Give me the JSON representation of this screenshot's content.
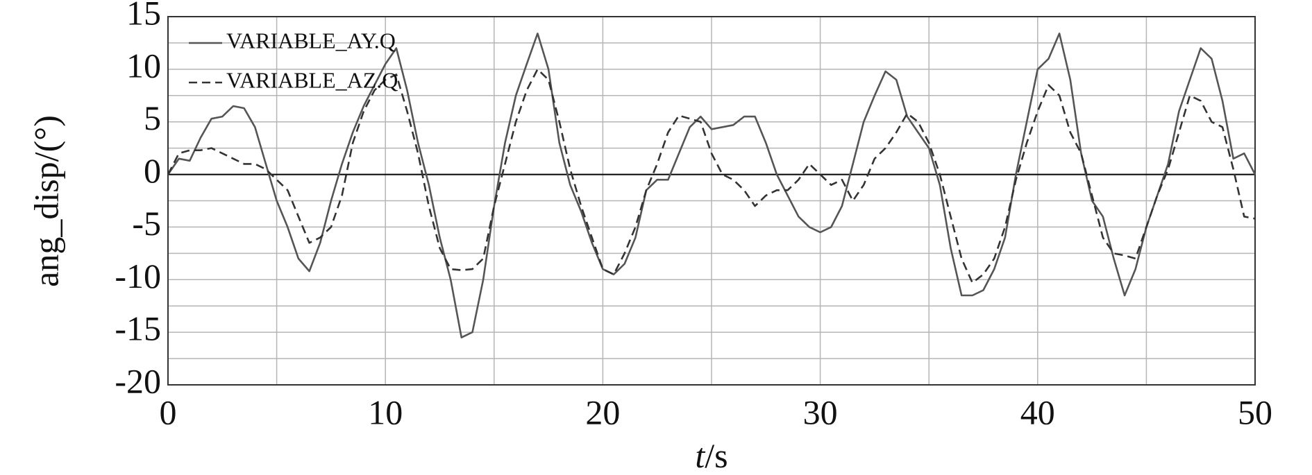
{
  "chart_data": {
    "type": "line",
    "x_label": {
      "symbol": "t",
      "unit": "/s"
    },
    "y_label": "ang_disp/(°)",
    "x": [
      0,
      0.5,
      1,
      1.5,
      2,
      2.5,
      3,
      3.5,
      4,
      4.5,
      5,
      5.5,
      6,
      6.5,
      7,
      7.5,
      8,
      8.5,
      9,
      9.5,
      10,
      10.5,
      11,
      11.5,
      12,
      12.5,
      13,
      13.5,
      14,
      14.5,
      15,
      15.5,
      16,
      16.5,
      17,
      17.5,
      18,
      18.5,
      19,
      19.5,
      20,
      20.5,
      21,
      21.5,
      22,
      22.5,
      23,
      23.5,
      24,
      24.5,
      25,
      25.5,
      26,
      26.5,
      27,
      27.5,
      28,
      28.5,
      29,
      29.5,
      30,
      30.5,
      31,
      31.5,
      32,
      32.5,
      33,
      33.5,
      34,
      34.5,
      35,
      35.5,
      36,
      36.5,
      37,
      37.5,
      38,
      38.5,
      39,
      39.5,
      40,
      40.5,
      41,
      41.5,
      42,
      42.5,
      43,
      43.5,
      44,
      44.5,
      45,
      45.5,
      46,
      46.5,
      47,
      47.5,
      48,
      48.5,
      49,
      49.5,
      50
    ],
    "series": [
      {
        "name": "VARIABLE_AY.Q",
        "color": "#555555",
        "dash": false,
        "values": [
          0,
          1.5,
          1.3,
          3.5,
          5.3,
          5.5,
          6.5,
          6.3,
          4.5,
          1,
          -2.5,
          -5,
          -8,
          -9.2,
          -6.5,
          -2.5,
          1,
          4,
          6.5,
          8.5,
          10.5,
          12,
          8,
          3,
          -1,
          -6,
          -10,
          -15.5,
          -15,
          -10,
          -3,
          3,
          7.5,
          10.5,
          13.4,
          10,
          3,
          -1,
          -3.5,
          -6.5,
          -9,
          -9.5,
          -8.5,
          -6,
          -1.5,
          -0.5,
          -0.5,
          2,
          4.5,
          5.5,
          4.3,
          4.5,
          4.7,
          5.5,
          5.5,
          3,
          0,
          -2,
          -4,
          -5,
          -5.5,
          -5,
          -3,
          1,
          5,
          7.5,
          9.8,
          9,
          5.5,
          4,
          2.5,
          -1,
          -7,
          -11.5,
          -11.5,
          -11,
          -9,
          -6,
          0,
          5,
          10,
          11,
          13.4,
          9,
          2,
          -2.5,
          -4,
          -8,
          -11.5,
          -9,
          -5,
          -2,
          1,
          6,
          9,
          12,
          11,
          7,
          1.5,
          2,
          0
        ]
      },
      {
        "name": "VARIABLE_AZ.Q",
        "color": "#333333",
        "dash": true,
        "values": [
          0,
          2,
          2.3,
          2.3,
          2.5,
          2,
          1.5,
          1,
          1,
          0.5,
          -0.5,
          -1.5,
          -4,
          -6.5,
          -6,
          -5,
          -2,
          3,
          6,
          8,
          9,
          9.5,
          6,
          2,
          -3,
          -7,
          -9,
          -9.1,
          -9,
          -8,
          -3,
          1,
          5,
          8,
          10,
          9,
          5,
          0.5,
          -3,
          -6,
          -9,
          -9.5,
          -7.5,
          -5,
          -1.5,
          1,
          4,
          5.6,
          5.3,
          5,
          2,
          0,
          -0.5,
          -1.5,
          -3,
          -2,
          -1.5,
          -1.5,
          -0.5,
          1,
          0,
          -1,
          -0.5,
          -2.5,
          -1,
          1.5,
          2.5,
          4,
          5.8,
          5,
          3,
          0,
          -4,
          -8,
          -10.3,
          -9.5,
          -8,
          -5,
          -0.5,
          3,
          6,
          8.5,
          7.5,
          4,
          2,
          -2,
          -6,
          -7.5,
          -7.7,
          -8,
          -5,
          -2,
          0.5,
          4,
          7.5,
          7,
          5,
          4.5,
          0.5,
          -4,
          -4.2
        ]
      }
    ],
    "xlim": [
      0,
      50
    ],
    "xticks": [
      0,
      10,
      20,
      30,
      40,
      50
    ],
    "x_minor_ticks": [
      5,
      15,
      25,
      35,
      45
    ],
    "ylim": [
      -20,
      15
    ],
    "yticks": [
      -20,
      -15,
      -10,
      -5,
      0,
      5,
      10,
      15
    ],
    "y_minor_ticks": [
      -17.5,
      -12.5,
      -7.5,
      -2.5,
      2.5,
      7.5,
      12.5
    ],
    "grid": true,
    "zero_line": true,
    "legend": "upper left"
  }
}
